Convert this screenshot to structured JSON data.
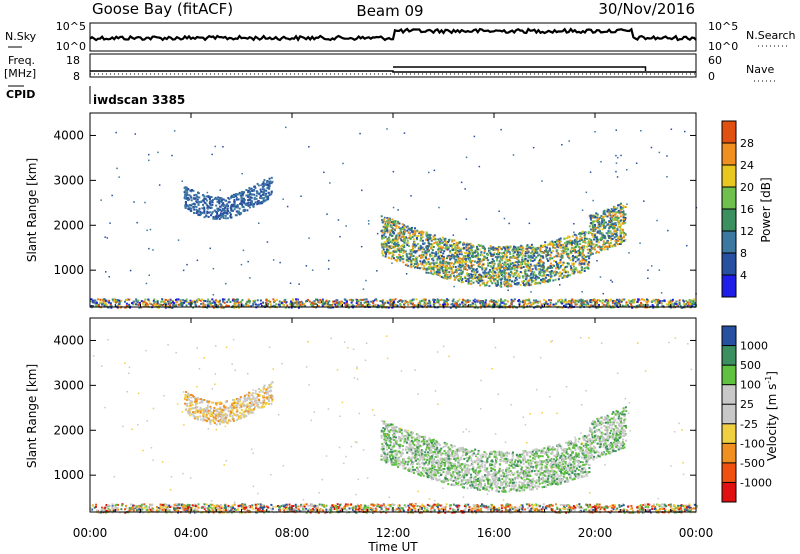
{
  "header": {
    "station": "Goose Bay (fitACF)",
    "beam": "Beam 09",
    "date": "30/Nov/2016"
  },
  "top_panels": {
    "nsky_label": "N.Sky",
    "nsky_ticks": [
      "10^5",
      "10^0"
    ],
    "nsearch_label": "N.Search",
    "nsearch_ticks": [
      "10^5",
      "10^0"
    ],
    "freq_label": "Freq.",
    "freq_unit": "[MHz]",
    "freq_ticks": [
      "18",
      "8"
    ],
    "nave_label": "Nave",
    "nave_ticks": [
      "60",
      "0"
    ],
    "cpid_label": "CPID",
    "cpid_value": "iwdscan 3385"
  },
  "colors": {
    "power_scale": [
      "#1e1ee8",
      "#2850a0",
      "#3c78a0",
      "#3c9060",
      "#70c050",
      "#e8c820",
      "#f09020",
      "#e05010",
      "#e01010"
    ],
    "velocity_scale": [
      "#e01010",
      "#f05010",
      "#f09020",
      "#f0d040",
      "#c8c8c8",
      "#c8c8c8",
      "#60c040",
      "#3c9060",
      "#2850a0",
      "#1e1ee8"
    ]
  },
  "chart_data": [
    {
      "type": "heatmap",
      "name": "power",
      "ylabel": "Slant Range [km]",
      "ylim": [
        180,
        4500
      ],
      "yticks": [
        1000,
        2000,
        3000,
        4000
      ],
      "xlim": [
        0,
        24
      ],
      "colorbar_label": "Power [dB]",
      "colorbar_ticks": [
        "4",
        "8",
        "12",
        "16",
        "20",
        "24",
        "28"
      ],
      "colorbar_range": [
        0,
        32
      ],
      "features": [
        {
          "region": "group-scatter-early",
          "t_start": 3.7,
          "t_end": 7.2,
          "range_center": 2650,
          "range_width": 250,
          "level": 5
        },
        {
          "region": "main-echo-band",
          "t_start": 11.5,
          "t_end": 21.2,
          "range_center": 1450,
          "range_width": 450,
          "level": 12
        },
        {
          "region": "near-range-clutter",
          "t_start": 0,
          "t_end": 24,
          "range_center": 280,
          "range_width": 160,
          "level": 8
        }
      ]
    },
    {
      "type": "heatmap",
      "name": "velocity",
      "ylabel": "Slant Range [km]",
      "ylim": [
        180,
        4500
      ],
      "yticks": [
        1000,
        2000,
        3000,
        4000
      ],
      "xlim": [
        0,
        24
      ],
      "xticks": [
        "00:00",
        "04:00",
        "08:00",
        "12:00",
        "16:00",
        "20:00",
        "00:00"
      ],
      "xlabel": "Time UT",
      "colorbar_label": "Velocity [m s^-1]",
      "colorbar_ticks": [
        "-1000",
        "-500",
        "-100",
        "-25",
        "25",
        "100",
        "500",
        "1000"
      ],
      "features": [
        {
          "region": "group-scatter-early",
          "t_start": 3.7,
          "t_end": 7.2,
          "range_center": 2650,
          "range_width": 250,
          "velocity": -25
        },
        {
          "region": "main-echo-band",
          "t_start": 11.5,
          "t_end": 21.2,
          "range_center": 1450,
          "range_width": 450,
          "velocity": 100
        },
        {
          "region": "near-range-clutter",
          "t_start": 0,
          "t_end": 24,
          "range_center": 280,
          "range_width": 160,
          "velocity": -100
        }
      ]
    }
  ]
}
